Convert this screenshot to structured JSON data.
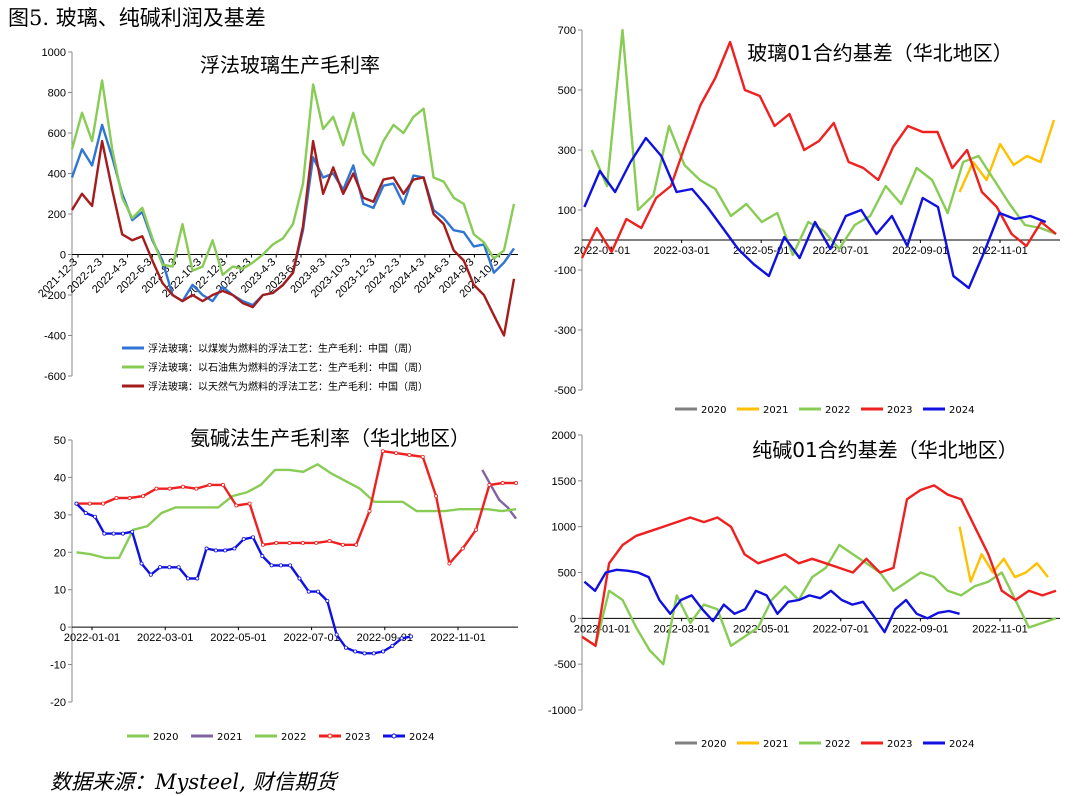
{
  "figure_title": "图5. 玻璃、纯碱利润及基差",
  "source": "数据来源：Mysteel, 财信期货",
  "chart_data": [
    {
      "id": "glass-profit",
      "type": "line",
      "title": "浮法玻璃生产毛利率",
      "ylim": [
        -600,
        1000
      ],
      "yticks": [
        1000,
        800,
        600,
        400,
        200,
        0,
        -200,
        -400,
        -600
      ],
      "xticks": [
        "2021-12-3",
        "2022-2-3",
        "2022-4-3",
        "2022-6-3",
        "2022-8-3",
        "2022-10-3",
        "2022-12-3",
        "2023-2-3",
        "2023-4-3",
        "2023-6-3",
        "2023-8-3",
        "2023-10-3",
        "2023-12-3",
        "2024-2-3",
        "2024-4-3",
        "2024-6-3",
        "2024-8-3",
        "2024-10-3"
      ],
      "series": [
        {
          "name": "浮法玻璃：以煤炭为燃料的浮法工艺：生产毛利：中国（周）",
          "color": "#2e75d6",
          "values": [
            380,
            520,
            440,
            640,
            480,
            300,
            170,
            210,
            70,
            -30,
            -200,
            -230,
            -150,
            -200,
            -230,
            -160,
            -200,
            -230,
            -250,
            -200,
            -190,
            -150,
            -90,
            120,
            480,
            380,
            400,
            320,
            440,
            250,
            230,
            340,
            350,
            250,
            390,
            380,
            220,
            180,
            120,
            110,
            40,
            50,
            -90,
            -40,
            30
          ]
        },
        {
          "name": "浮法玻璃：以石油焦为燃料的浮法工艺：生产毛利：中国（周）",
          "color": "#88cc55",
          "values": [
            520,
            700,
            560,
            860,
            520,
            280,
            180,
            230,
            80,
            -50,
            -60,
            150,
            -80,
            -60,
            70,
            -100,
            -60,
            -70,
            -40,
            0,
            50,
            80,
            150,
            350,
            840,
            620,
            680,
            540,
            700,
            500,
            440,
            560,
            640,
            600,
            680,
            720,
            380,
            360,
            280,
            250,
            100,
            60,
            -20,
            20,
            250
          ]
        },
        {
          "name": "浮法玻璃：以天然气为燃料的浮法工艺：生产毛利：中国（周）",
          "color": "#a51c1c",
          "values": [
            220,
            300,
            240,
            560,
            320,
            100,
            70,
            90,
            -30,
            -140,
            -200,
            -230,
            -200,
            -230,
            -200,
            -180,
            -200,
            -240,
            -260,
            -200,
            -190,
            -150,
            -90,
            140,
            560,
            300,
            430,
            300,
            400,
            280,
            260,
            370,
            380,
            300,
            370,
            380,
            200,
            150,
            20,
            -30,
            -150,
            -200,
            -300,
            -400,
            -120
          ]
        }
      ]
    },
    {
      "id": "glass-basis",
      "type": "line",
      "title": "玻璃01合约基差（华北地区）",
      "ylim": [
        -500,
        700
      ],
      "yticks": [
        700,
        500,
        300,
        100,
        -100,
        -300,
        -500
      ],
      "xticks": [
        "2022-01-01",
        "2022-03-01",
        "2022-05-01",
        "2022-07-01",
        "2022-09-01",
        "2022-11-01"
      ],
      "legend": [
        "2020",
        "2021",
        "2022",
        "2023",
        "2024"
      ],
      "series": [
        {
          "name": "2020",
          "color": "#808080",
          "values": []
        },
        {
          "name": "2021",
          "color": "#ffc000",
          "values": [
            160,
            260,
            200,
            320,
            250,
            280,
            260,
            400
          ]
        },
        {
          "name": "2022",
          "color": "#88cc55",
          "values": [
            300,
            180,
            700,
            100,
            150,
            380,
            250,
            200,
            170,
            80,
            120,
            60,
            90,
            -50,
            60,
            30,
            -30,
            50,
            80,
            180,
            120,
            240,
            200,
            90,
            260,
            280,
            200,
            120,
            50,
            40,
            20
          ]
        },
        {
          "name": "2023",
          "color": "#ef2020",
          "values": [
            -60,
            40,
            -40,
            70,
            40,
            140,
            180,
            320,
            450,
            540,
            660,
            500,
            480,
            380,
            420,
            300,
            330,
            390,
            260,
            240,
            200,
            310,
            380,
            360,
            360,
            240,
            300,
            160,
            110,
            20,
            -20,
            60,
            20
          ]
        },
        {
          "name": "2024",
          "color": "#1010e0",
          "values": [
            110,
            230,
            160,
            260,
            340,
            280,
            160,
            170,
            110,
            40,
            -30,
            -80,
            -120,
            10,
            -60,
            60,
            -30,
            80,
            100,
            20,
            80,
            -20,
            140,
            110,
            -120,
            -160,
            -40,
            90,
            70,
            80,
            60
          ]
        }
      ]
    },
    {
      "id": "soda-profit",
      "type": "line",
      "title": "氨碱法生产毛利率（华北地区）",
      "ylim": [
        -20,
        50
      ],
      "yticks": [
        50,
        40,
        30,
        20,
        10,
        0,
        -10,
        -20
      ],
      "xticks": [
        "2022-01-01",
        "2022-03-01",
        "2022-05-01",
        "2022-07-01",
        "2022-09-01",
        "2022-11-01"
      ],
      "legend": [
        "2020",
        "2021",
        "2022",
        "2023",
        "2024"
      ],
      "series": [
        {
          "name": "2020",
          "color": "#88cc55",
          "values": []
        },
        {
          "name": "2021",
          "color": "#8064a2",
          "values": [
            42,
            38,
            34,
            32,
            29
          ]
        },
        {
          "name": "2022",
          "color": "#88cc55",
          "values": [
            20,
            19.5,
            18.5,
            18.5,
            26,
            27,
            30.5,
            32,
            32,
            32,
            32,
            35,
            36,
            38,
            42,
            42,
            41.5,
            43.5,
            41,
            39,
            37,
            33.5,
            33.5,
            33.5,
            31,
            31,
            31,
            31.5,
            31.5,
            31.5,
            31,
            31.5
          ]
        },
        {
          "name": "2023",
          "color": "#ef2020",
          "values": [
            33,
            33,
            33,
            34.5,
            34.5,
            35,
            37,
            37,
            37.5,
            37,
            38,
            38,
            32.5,
            33,
            22,
            22.5,
            22.5,
            22.5,
            22.5,
            23,
            22,
            22,
            31,
            47,
            46.5,
            46,
            45.5,
            35,
            17,
            21,
            26,
            38,
            38.5,
            38.5
          ]
        },
        {
          "name": "2024",
          "color": "#1010e0",
          "values": [
            33,
            30.5,
            29.5,
            25,
            25,
            25,
            25.5,
            17,
            14,
            16,
            16,
            16,
            13,
            13,
            21,
            20.5,
            20.5,
            21,
            23.5,
            24,
            19,
            16.5,
            16.5,
            16.5,
            13,
            9.5,
            9.5,
            7,
            -2,
            -5.5,
            -6.5,
            -7,
            -7,
            -6.5,
            -5,
            -3,
            -2.5
          ]
        }
      ]
    },
    {
      "id": "soda-basis",
      "type": "line",
      "title": "纯碱01合约基差（华北地区）",
      "ylim": [
        -1000,
        2000
      ],
      "yticks": [
        2000,
        1500,
        1000,
        500,
        0,
        -500,
        -1000
      ],
      "xticks": [
        "2022-01-01",
        "2022-03-01",
        "2022-05-01",
        "2022-07-01",
        "2022-09-01",
        "2022-11-01"
      ],
      "legend": [
        "2020",
        "2021",
        "2022",
        "2023",
        "2024"
      ],
      "series": [
        {
          "name": "2020",
          "color": "#808080",
          "values": []
        },
        {
          "name": "2021",
          "color": "#ffc000",
          "values": [
            1000,
            400,
            700,
            500,
            650,
            450,
            500,
            600,
            450
          ]
        },
        {
          "name": "2022",
          "color": "#88cc55",
          "values": [
            -200,
            -300,
            300,
            200,
            -100,
            -350,
            -500,
            250,
            -50,
            150,
            100,
            -300,
            -200,
            -100,
            200,
            350,
            200,
            450,
            550,
            800,
            700,
            600,
            500,
            300,
            400,
            500,
            450,
            300,
            250,
            350,
            400,
            500,
            200,
            -100,
            -50,
            0
          ]
        },
        {
          "name": "2023",
          "color": "#ef2020",
          "values": [
            -200,
            -300,
            600,
            800,
            900,
            950,
            1000,
            1050,
            1100,
            1050,
            1100,
            1000,
            700,
            600,
            650,
            700,
            600,
            650,
            600,
            550,
            500,
            650,
            500,
            550,
            1300,
            1400,
            1450,
            1350,
            1300,
            1000,
            700,
            300,
            200,
            300,
            250,
            300
          ]
        },
        {
          "name": "2024",
          "color": "#1010e0",
          "values": [
            400,
            300,
            500,
            530,
            520,
            500,
            450,
            200,
            50,
            200,
            250,
            100,
            -30,
            150,
            50,
            100,
            300,
            250,
            50,
            180,
            200,
            250,
            220,
            300,
            200,
            150,
            180,
            20,
            -150,
            100,
            200,
            50,
            0,
            60,
            80,
            50
          ]
        }
      ]
    }
  ]
}
